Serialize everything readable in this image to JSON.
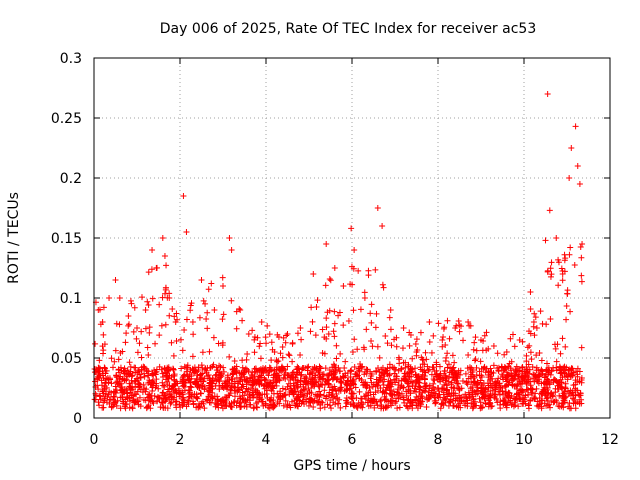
{
  "chart_data": {
    "type": "scatter",
    "title": "Day 006 of 2025, Rate Of TEC Index for receiver ac53",
    "xlabel": "GPS time / hours",
    "ylabel": "ROTI / TECUs",
    "xlim": [
      0,
      12
    ],
    "ylim": [
      0,
      0.3
    ],
    "xticks": [
      0,
      2,
      4,
      6,
      8,
      10,
      12
    ],
    "yticks": [
      0,
      0.05,
      0.1,
      0.15,
      0.2,
      0.25,
      0.3
    ],
    "xtick_labels": [
      "0",
      "2",
      "4",
      "6",
      "8",
      "10",
      "12"
    ],
    "ytick_labels": [
      "0",
      "0.05",
      "0.1",
      "0.15",
      "0.2",
      "0.25",
      "0.3"
    ],
    "grid": true,
    "marker": "+",
    "color": "#ff0000",
    "data_extent_hours": [
      0,
      11.35
    ],
    "series": [
      {
        "name": "ac53",
        "note": "dense cloud of ~4000 points approximated by ~60 representative (x, y) samples",
        "points": [
          [
            0.1,
            0.09
          ],
          [
            0.2,
            0.08
          ],
          [
            0.35,
            0.1
          ],
          [
            0.5,
            0.115
          ],
          [
            0.6,
            0.1
          ],
          [
            0.8,
            0.085
          ],
          [
            1.0,
            0.075
          ],
          [
            1.2,
            0.09
          ],
          [
            1.35,
            0.14
          ],
          [
            1.45,
            0.125
          ],
          [
            1.6,
            0.15
          ],
          [
            1.65,
            0.135
          ],
          [
            1.75,
            0.1
          ],
          [
            1.9,
            0.08
          ],
          [
            2.08,
            0.185
          ],
          [
            2.15,
            0.155
          ],
          [
            2.3,
            0.08
          ],
          [
            2.5,
            0.115
          ],
          [
            2.8,
            0.09
          ],
          [
            3.0,
            0.11
          ],
          [
            3.15,
            0.15
          ],
          [
            3.2,
            0.14
          ],
          [
            3.4,
            0.09
          ],
          [
            3.6,
            0.07
          ],
          [
            3.9,
            0.08
          ],
          [
            4.2,
            0.055
          ],
          [
            4.5,
            0.07
          ],
          [
            4.8,
            0.075
          ],
          [
            5.1,
            0.12
          ],
          [
            5.4,
            0.145
          ],
          [
            5.6,
            0.125
          ],
          [
            5.8,
            0.11
          ],
          [
            5.98,
            0.158
          ],
          [
            6.05,
            0.14
          ],
          [
            6.3,
            0.1
          ],
          [
            6.6,
            0.175
          ],
          [
            6.7,
            0.16
          ],
          [
            6.9,
            0.09
          ],
          [
            7.2,
            0.075
          ],
          [
            7.5,
            0.055
          ],
          [
            7.8,
            0.08
          ],
          [
            8.1,
            0.065
          ],
          [
            8.4,
            0.075
          ],
          [
            8.7,
            0.08
          ],
          [
            9.0,
            0.065
          ],
          [
            9.3,
            0.06
          ],
          [
            9.6,
            0.055
          ],
          [
            9.9,
            0.065
          ],
          [
            10.15,
            0.105
          ],
          [
            10.3,
            0.075
          ],
          [
            10.5,
            0.148
          ],
          [
            10.55,
            0.27
          ],
          [
            10.6,
            0.173
          ],
          [
            10.75,
            0.15
          ],
          [
            10.9,
            0.12
          ],
          [
            11.05,
            0.2
          ],
          [
            11.1,
            0.225
          ],
          [
            11.2,
            0.243
          ],
          [
            11.25,
            0.21
          ],
          [
            11.3,
            0.195
          ],
          [
            11.35,
            0.145
          ]
        ]
      }
    ]
  }
}
